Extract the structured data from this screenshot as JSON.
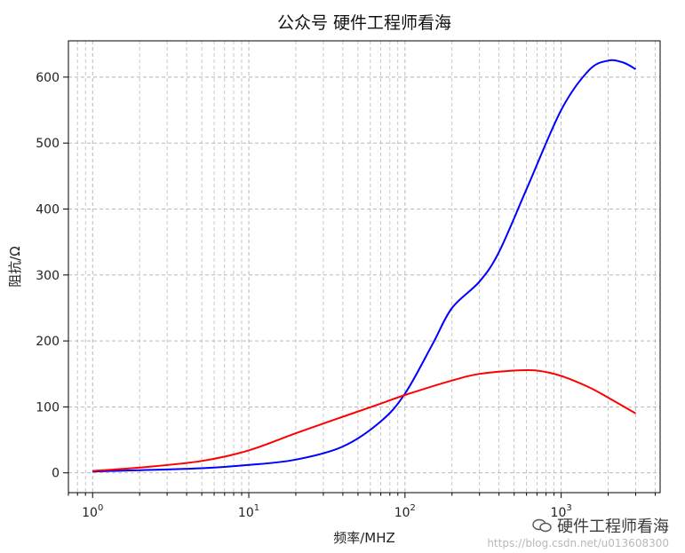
{
  "chart_data": {
    "type": "line",
    "title": "公众号 硬件工程师看海",
    "xlabel": "频率/MHZ",
    "ylabel": "阻抗/Ω",
    "xscale": "log",
    "xlim": [
      0.7,
      4300
    ],
    "ylim": [
      -30,
      655
    ],
    "xticks": [
      {
        "value": 1,
        "mantissa": "10",
        "exp": "0"
      },
      {
        "value": 10,
        "mantissa": "10",
        "exp": "1"
      },
      {
        "value": 100,
        "mantissa": "10",
        "exp": "2"
      },
      {
        "value": 1000,
        "mantissa": "10",
        "exp": "3"
      }
    ],
    "yticks": [
      0,
      100,
      200,
      300,
      400,
      500,
      600
    ],
    "grid": true,
    "series": [
      {
        "color": "#0000ff",
        "x": [
          1,
          2,
          5,
          10,
          20,
          40,
          70,
          100,
          150,
          200,
          300,
          400,
          600,
          1000,
          1500,
          2000,
          2500,
          3000
        ],
        "values": [
          2,
          4,
          7,
          12,
          20,
          40,
          78,
          120,
          195,
          250,
          290,
          335,
          430,
          550,
          610,
          625,
          622,
          612
        ]
      },
      {
        "color": "#ff0000",
        "x": [
          1,
          2,
          5,
          10,
          20,
          40,
          70,
          100,
          200,
          300,
          500,
          700,
          1000,
          1500,
          2000,
          3000
        ],
        "values": [
          3,
          8,
          18,
          34,
          60,
          85,
          105,
          118,
          140,
          150,
          155,
          155,
          147,
          130,
          114,
          90
        ]
      }
    ]
  },
  "watermark": {
    "text": "硬件工程师看海",
    "url": "https://blog.csdn.net/u013608300"
  }
}
